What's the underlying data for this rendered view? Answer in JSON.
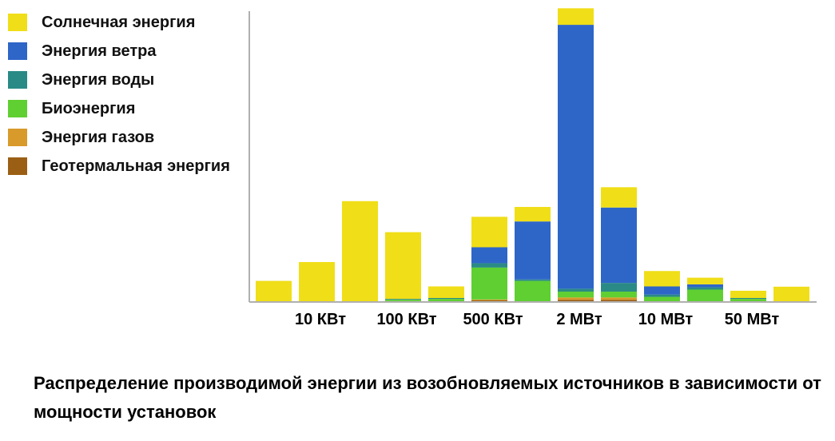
{
  "chart_data": {
    "type": "bar",
    "stacked": true,
    "title": "Распределение производимой энергии из возобновляемых источников в зависимости от мощности установок",
    "xlabel": "",
    "ylabel": "",
    "ylim": [
      0,
      100
    ],
    "grid": false,
    "legend_position": "top-left",
    "tick_labels": [
      {
        "text": "10 КВт",
        "at": 1.5
      },
      {
        "text": "100 КВт",
        "at": 3.5
      },
      {
        "text": "500 КВт",
        "at": 5.5
      },
      {
        "text": "2 МВт",
        "at": 7.5
      },
      {
        "text": "10 МВт",
        "at": 9.5
      },
      {
        "text": "50 МВт",
        "at": 11.5
      }
    ],
    "series": [
      {
        "name": "Геотермальная энергия",
        "color": "#9a5f14",
        "values": [
          0,
          0,
          0,
          0,
          0,
          0.3,
          0,
          0.5,
          0.5,
          0,
          0,
          0,
          0
        ]
      },
      {
        "name": "Энергия газов",
        "color": "#d89a2a",
        "values": [
          0,
          0,
          0,
          0,
          0,
          0.3,
          0,
          0.8,
          0.8,
          0,
          0,
          0,
          0
        ]
      },
      {
        "name": "Биоэнергия",
        "color": "#5fcf32",
        "values": [
          0,
          0,
          0,
          0.5,
          0.8,
          11,
          7,
          2,
          2,
          1.5,
          4,
          0.8,
          0
        ]
      },
      {
        "name": "Энергия воды",
        "color": "#2a8a86",
        "values": [
          0,
          0,
          0,
          0.3,
          0.3,
          1.5,
          0.5,
          1,
          3,
          0.8,
          0.8,
          0.3,
          0
        ]
      },
      {
        "name": "Энергия ветра",
        "color": "#2e66c8",
        "values": [
          0,
          0,
          0,
          0,
          0,
          5.5,
          20,
          91,
          26,
          2.8,
          1,
          0,
          0
        ]
      },
      {
        "name": "Солнечная энергия",
        "color": "#f0de18",
        "values": [
          7,
          13.5,
          34.5,
          23,
          4,
          10.5,
          5,
          5.7,
          7,
          5.3,
          2.3,
          2.5,
          5
        ]
      }
    ]
  }
}
